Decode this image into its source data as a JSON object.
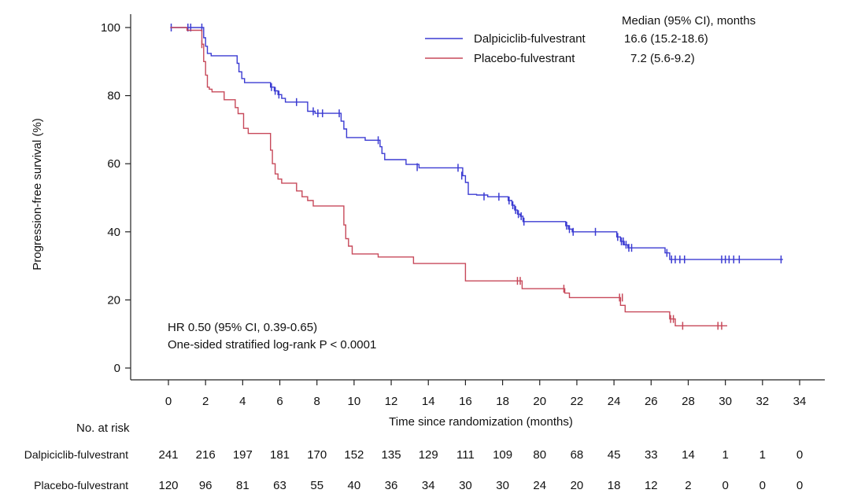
{
  "chart_data": {
    "type": "line",
    "subtype": "kaplan_meier_step_curves",
    "title": "",
    "xlabel": "Time since randomization (months)",
    "ylabel": "Progression-free survival (%)",
    "xlim": [
      0,
      34
    ],
    "ylim": [
      0,
      100
    ],
    "xticks": [
      0,
      2,
      4,
      6,
      8,
      10,
      12,
      14,
      16,
      18,
      20,
      22,
      24,
      26,
      28,
      30,
      32,
      34
    ],
    "yticks": [
      0,
      20,
      40,
      60,
      80,
      100
    ],
    "grid": false,
    "axis_color": "#222222",
    "legend": {
      "position": "top-center",
      "median_header": "Median (95% CI), months",
      "entries": [
        {
          "label": "Dalpiciclib-fulvestrant",
          "median": "16.6 (15.2-18.6)"
        },
        {
          "label": "Placebo-fulvestrant",
          "median": "7.2 (5.6-9.2)"
        }
      ]
    },
    "annotations": {
      "line1": "HR 0.50 (95% CI, 0.39-0.65)",
      "line2": "One-sided stratified log-rank P < 0.0001"
    },
    "series": [
      {
        "name": "Dalpiciclib-fulvestrant",
        "color": "#3b3bd2",
        "steps": [
          [
            0.1,
            100
          ],
          [
            1.9,
            97
          ],
          [
            2.0,
            94.5
          ],
          [
            2.1,
            92.4
          ],
          [
            2.3,
            91.7
          ],
          [
            3.7,
            89.5
          ],
          [
            3.8,
            87.0
          ],
          [
            3.95,
            85.0
          ],
          [
            4.1,
            83.8
          ],
          [
            5.5,
            82.5
          ],
          [
            5.7,
            81.4
          ],
          [
            5.9,
            80.3
          ],
          [
            6.1,
            79.2
          ],
          [
            6.3,
            78.1
          ],
          [
            7.5,
            75.4
          ],
          [
            7.9,
            74.8
          ],
          [
            9.3,
            72.5
          ],
          [
            9.45,
            70.2
          ],
          [
            9.6,
            67.7
          ],
          [
            10.6,
            66.9
          ],
          [
            11.4,
            65.0
          ],
          [
            11.5,
            63.0
          ],
          [
            11.65,
            61.2
          ],
          [
            12.8,
            59.8
          ],
          [
            13.5,
            58.8
          ],
          [
            15.85,
            56.5
          ],
          [
            16.0,
            54.5
          ],
          [
            16.15,
            51.0
          ],
          [
            16.6,
            50.8
          ],
          [
            17.2,
            50.3
          ],
          [
            18.3,
            49.2
          ],
          [
            18.5,
            47.8
          ],
          [
            18.65,
            46.4
          ],
          [
            18.8,
            45.2
          ],
          [
            18.95,
            44.6
          ],
          [
            19.1,
            43.0
          ],
          [
            21.4,
            41.8
          ],
          [
            21.55,
            40.8
          ],
          [
            21.75,
            40.0
          ],
          [
            24.15,
            38.5
          ],
          [
            24.35,
            37.2
          ],
          [
            24.55,
            36.2
          ],
          [
            24.75,
            35.3
          ],
          [
            26.75,
            33.8
          ],
          [
            27.0,
            31.9
          ],
          [
            33.1,
            31.9
          ]
        ],
        "censors": [
          [
            0.15,
            100
          ],
          [
            1.05,
            100
          ],
          [
            1.2,
            100
          ],
          [
            1.8,
            100
          ],
          [
            5.55,
            82.5
          ],
          [
            5.75,
            81.4
          ],
          [
            5.95,
            80.3
          ],
          [
            6.9,
            78.1
          ],
          [
            7.8,
            75.4
          ],
          [
            8.05,
            74.8
          ],
          [
            8.3,
            74.8
          ],
          [
            9.2,
            74.8
          ],
          [
            11.3,
            66.9
          ],
          [
            13.4,
            59.0
          ],
          [
            15.6,
            58.8
          ],
          [
            15.8,
            56.5
          ],
          [
            17.0,
            50.4
          ],
          [
            17.8,
            50.3
          ],
          [
            18.35,
            49.2
          ],
          [
            18.55,
            47.8
          ],
          [
            18.7,
            46.4
          ],
          [
            18.85,
            45.2
          ],
          [
            19.0,
            44.6
          ],
          [
            19.15,
            43.0
          ],
          [
            21.45,
            41.8
          ],
          [
            21.6,
            40.8
          ],
          [
            21.8,
            40.0
          ],
          [
            23.0,
            40.0
          ],
          [
            24.2,
            38.5
          ],
          [
            24.4,
            37.2
          ],
          [
            24.5,
            37.2
          ],
          [
            24.65,
            36.2
          ],
          [
            24.8,
            35.3
          ],
          [
            24.95,
            35.3
          ],
          [
            26.85,
            33.8
          ],
          [
            27.1,
            31.9
          ],
          [
            27.3,
            31.9
          ],
          [
            27.55,
            31.9
          ],
          [
            27.8,
            31.9
          ],
          [
            29.8,
            31.9
          ],
          [
            30.0,
            31.9
          ],
          [
            30.2,
            31.9
          ],
          [
            30.45,
            31.9
          ],
          [
            30.75,
            31.9
          ],
          [
            33.0,
            31.9
          ]
        ]
      },
      {
        "name": "Placebo-fulvestrant",
        "color": "#c7495a",
        "steps": [
          [
            0.1,
            100
          ],
          [
            1.0,
            99.2
          ],
          [
            1.8,
            95.1
          ],
          [
            1.9,
            90.0
          ],
          [
            2.0,
            86.0
          ],
          [
            2.1,
            82.5
          ],
          [
            2.2,
            81.9
          ],
          [
            2.35,
            81.1
          ],
          [
            3.0,
            78.8
          ],
          [
            3.6,
            76.5
          ],
          [
            3.75,
            74.7
          ],
          [
            4.05,
            70.4
          ],
          [
            4.3,
            68.9
          ],
          [
            5.5,
            64.0
          ],
          [
            5.6,
            60.0
          ],
          [
            5.75,
            57.0
          ],
          [
            5.9,
            55.5
          ],
          [
            6.1,
            54.3
          ],
          [
            6.9,
            52.0
          ],
          [
            7.2,
            50.3
          ],
          [
            7.5,
            49.2
          ],
          [
            7.8,
            47.6
          ],
          [
            9.45,
            42.0
          ],
          [
            9.55,
            38.0
          ],
          [
            9.7,
            35.8
          ],
          [
            9.9,
            33.5
          ],
          [
            11.3,
            32.6
          ],
          [
            13.2,
            30.7
          ],
          [
            16.0,
            25.6
          ],
          [
            19.05,
            23.3
          ],
          [
            21.35,
            22.0
          ],
          [
            21.6,
            20.7
          ],
          [
            24.35,
            18.4
          ],
          [
            24.6,
            16.5
          ],
          [
            27.0,
            14.4
          ],
          [
            27.3,
            12.4
          ],
          [
            30.1,
            12.4
          ]
        ],
        "censors": [
          [
            1.8,
            95.1
          ],
          [
            18.8,
            25.6
          ],
          [
            18.95,
            25.6
          ],
          [
            21.3,
            23.3
          ],
          [
            24.3,
            20.7
          ],
          [
            24.45,
            20.7
          ],
          [
            27.05,
            14.4
          ],
          [
            27.2,
            14.4
          ],
          [
            27.7,
            12.4
          ],
          [
            29.6,
            12.4
          ],
          [
            29.8,
            12.4
          ]
        ]
      }
    ],
    "risk_table": {
      "title": "No. at risk",
      "time_points": [
        0,
        2,
        4,
        6,
        8,
        10,
        12,
        14,
        16,
        18,
        20,
        22,
        24,
        26,
        28,
        30,
        32,
        34
      ],
      "rows": [
        {
          "label": "Dalpiciclib-fulvestrant",
          "counts": [
            241,
            216,
            197,
            181,
            170,
            152,
            135,
            129,
            111,
            109,
            80,
            68,
            45,
            33,
            14,
            1,
            1,
            0
          ]
        },
        {
          "label": "Placebo-fulvestrant",
          "counts": [
            120,
            96,
            81,
            63,
            55,
            40,
            36,
            34,
            30,
            30,
            24,
            20,
            18,
            12,
            2,
            0,
            0,
            0
          ]
        }
      ]
    }
  }
}
